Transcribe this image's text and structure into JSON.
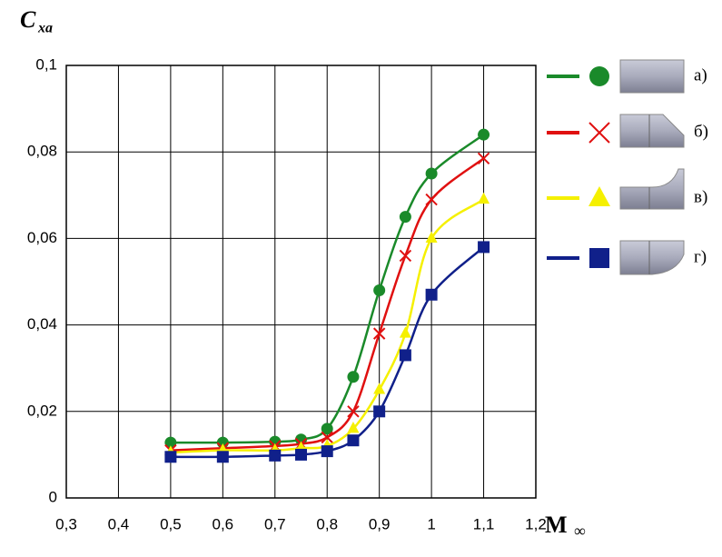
{
  "chart_data": {
    "type": "line",
    "x_label": {
      "text": "M",
      "subscript": "∞"
    },
    "y_label": {
      "text": "C",
      "subscript": "xa"
    },
    "x": [
      0.5,
      0.6,
      0.7,
      0.75,
      0.8,
      0.85,
      0.9,
      0.95,
      1.0,
      1.1
    ],
    "xlim": [
      0.3,
      1.2
    ],
    "xticks": [
      {
        "value": 0.3,
        "label": "0,3"
      },
      {
        "value": 0.4,
        "label": "0,4"
      },
      {
        "value": 0.5,
        "label": "0,5"
      },
      {
        "value": 0.6,
        "label": "0,6"
      },
      {
        "value": 0.7,
        "label": "0,7"
      },
      {
        "value": 0.8,
        "label": "0,8"
      },
      {
        "value": 0.9,
        "label": "0,9"
      },
      1,
      {
        "value": 1.1,
        "label": "1,1"
      },
      {
        "value": 1.2,
        "label": "1,2"
      }
    ],
    "ylim": [
      0,
      0.1
    ],
    "yticks": [
      0,
      {
        "value": 0.02,
        "label": "0,02"
      },
      {
        "value": 0.04,
        "label": "0,04"
      },
      {
        "value": 0.06,
        "label": "0,06"
      },
      {
        "value": 0.08,
        "label": "0,08"
      },
      {
        "value": 0.1,
        "label": "0,1"
      }
    ],
    "grid": true,
    "series": [
      {
        "name": "а)",
        "color": "#1a8a2a",
        "marker": "circle",
        "values": [
          0.0128,
          0.0128,
          0.013,
          0.0135,
          0.016,
          0.028,
          0.048,
          0.065,
          0.075,
          0.084
        ]
      },
      {
        "name": "б)",
        "color": "#e01010",
        "marker": "cross",
        "values": [
          0.011,
          0.0115,
          0.012,
          0.0125,
          0.014,
          0.02,
          0.038,
          0.056,
          0.069,
          0.0785
        ]
      },
      {
        "name": "в)",
        "color": "#f5f000",
        "marker": "triangle",
        "values": [
          0.0105,
          0.011,
          0.011,
          0.0115,
          0.012,
          0.016,
          0.025,
          0.038,
          0.06,
          0.069
        ]
      },
      {
        "name": "г)",
        "color": "#10208a",
        "marker": "square",
        "values": [
          0.0095,
          0.0095,
          0.0098,
          0.01,
          0.0108,
          0.0133,
          0.02,
          0.033,
          0.047,
          0.058
        ]
      }
    ]
  }
}
